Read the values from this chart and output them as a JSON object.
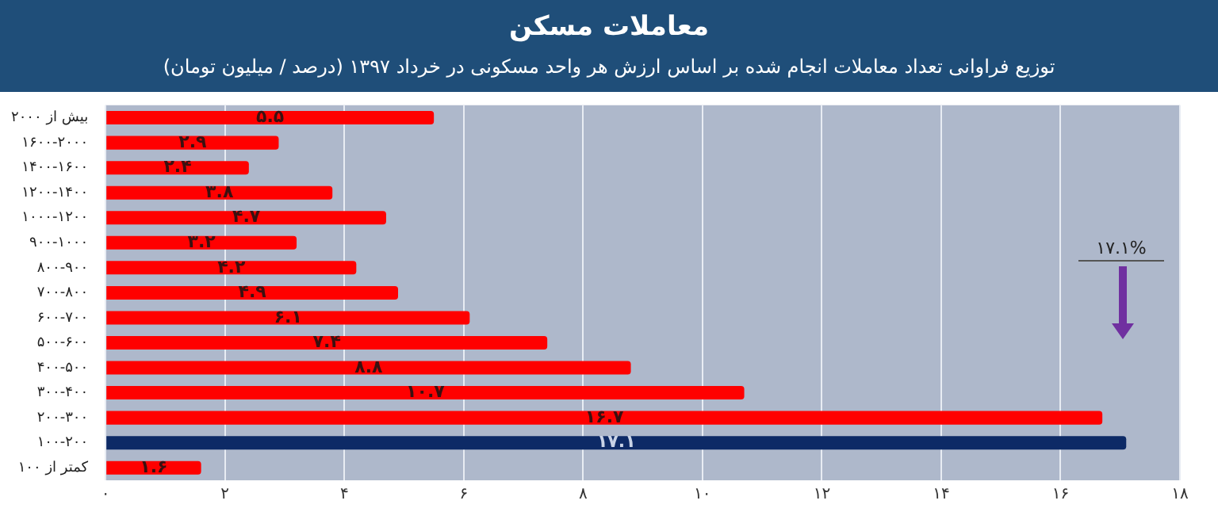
{
  "chart_data": {
    "type": "bar",
    "orientation": "horizontal",
    "title": "معاملات مسکن",
    "subtitle": "توزیع فراوانی تعداد معاملات انجام شده بر اساس ارزش هر واحد مسکونی در خرداد ۱۳۹۷ (درصد / میلیون تومان)",
    "categories": [
      "بیش از ۲۰۰۰",
      "۱۶۰۰-۲۰۰۰",
      "۱۴۰۰-۱۶۰۰",
      "۱۲۰۰-۱۴۰۰",
      "۱۰۰۰-۱۲۰۰",
      "۹۰۰-۱۰۰۰",
      "۸۰۰-۹۰۰",
      "۷۰۰-۸۰۰",
      "۶۰۰-۷۰۰",
      "۵۰۰-۶۰۰",
      "۴۰۰-۵۰۰",
      "۳۰۰-۴۰۰",
      "۲۰۰-۳۰۰",
      "۱۰۰-۲۰۰",
      "کمتر از ۱۰۰"
    ],
    "values": [
      5.5,
      2.9,
      2.4,
      3.8,
      4.7,
      3.2,
      4.2,
      4.9,
      6.1,
      7.4,
      8.8,
      10.7,
      16.7,
      17.1,
      1.6
    ],
    "value_labels": [
      "۵.۵",
      "۲.۹",
      "۲.۴",
      "۳.۸",
      "۴.۷",
      "۳.۲",
      "۴.۲",
      "۴.۹",
      "۶.۱",
      "۷.۴",
      "۸.۸",
      "۱۰.۷",
      "۱۶.۷",
      "۱۷.۱",
      "۱.۶"
    ],
    "colors": [
      "#ff0000",
      "#ff0000",
      "#ff0000",
      "#ff0000",
      "#ff0000",
      "#ff0000",
      "#ff0000",
      "#ff0000",
      "#ff0000",
      "#ff0000",
      "#ff0000",
      "#ff0000",
      "#ff0000",
      "#0d2a66",
      "#ff0000"
    ],
    "xlim": [
      0,
      18
    ],
    "xticks": [
      {
        "value": 0,
        "label": "۰"
      },
      {
        "value": 2,
        "label": "۲"
      },
      {
        "value": 4,
        "label": "۴"
      },
      {
        "value": 6,
        "label": "۶"
      },
      {
        "value": 8,
        "label": "۸"
      },
      {
        "value": 10,
        "label": "۱۰"
      },
      {
        "value": 12,
        "label": "۱۲"
      },
      {
        "value": 14,
        "label": "۱۴"
      },
      {
        "value": 16,
        "label": "۱۶"
      },
      {
        "value": 18,
        "label": "۱۸"
      }
    ],
    "grid": "x",
    "annotations": [
      "۱۷.۱%"
    ]
  }
}
